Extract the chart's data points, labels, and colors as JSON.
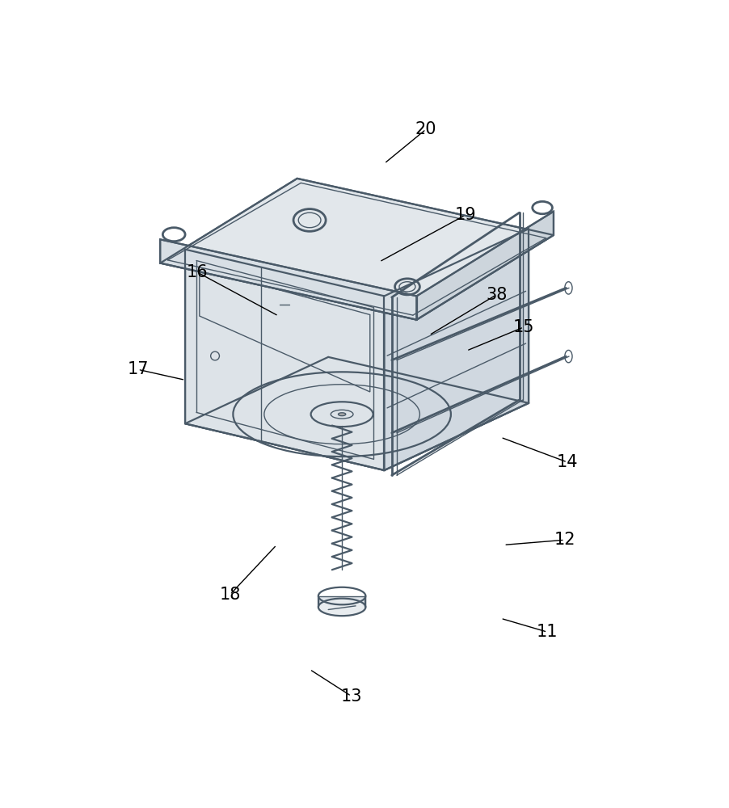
{
  "background_color": "#ffffff",
  "line_color": "#4a5a68",
  "label_color": "#000000",
  "lw_main": 1.6,
  "lw_thin": 1.0,
  "lw_thick": 2.0,
  "face_top": "#e8ecef",
  "face_left": "#dde3e8",
  "face_right": "#d0d8e0",
  "face_base_top": "#e2e7eb",
  "face_base_left": "#d8dfe5",
  "face_base_front": "#cdd5dc",
  "labels_info": [
    [
      "20",
      535,
      52,
      468,
      107
    ],
    [
      "19",
      598,
      190,
      460,
      265
    ],
    [
      "38",
      648,
      318,
      540,
      383
    ],
    [
      "15",
      692,
      370,
      600,
      408
    ],
    [
      "16",
      168,
      282,
      298,
      352
    ],
    [
      "17",
      72,
      438,
      148,
      455
    ],
    [
      "18",
      220,
      800,
      295,
      720
    ],
    [
      "14",
      762,
      587,
      655,
      547
    ],
    [
      "12",
      758,
      712,
      660,
      720
    ],
    [
      "11",
      730,
      860,
      655,
      838
    ],
    [
      "13",
      415,
      963,
      348,
      920
    ]
  ]
}
